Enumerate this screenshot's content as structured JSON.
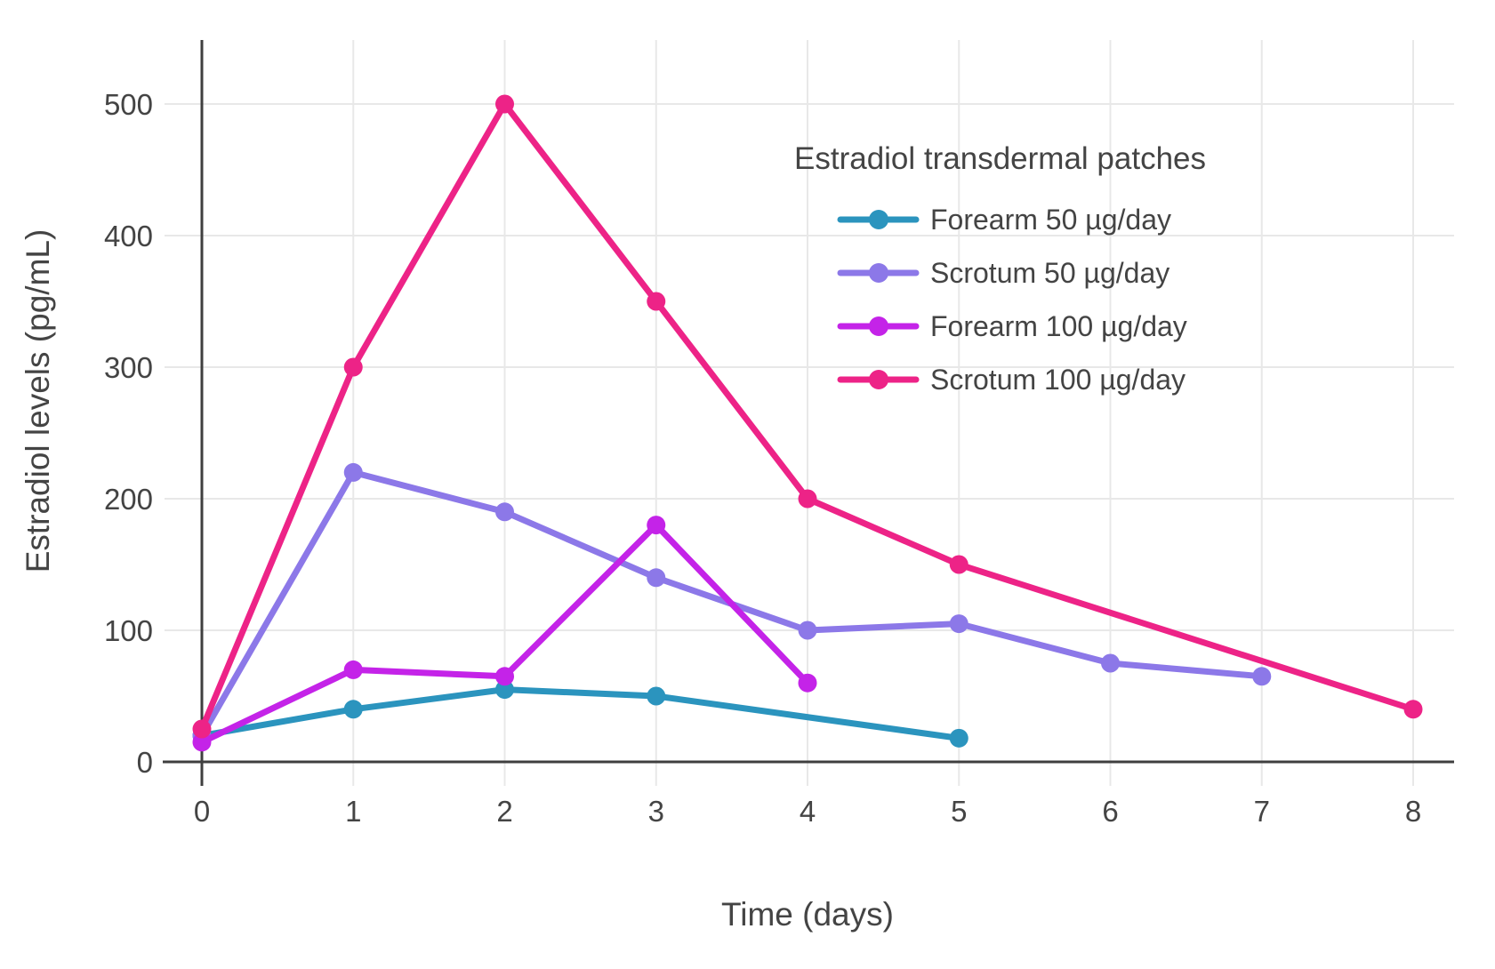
{
  "chart_data": {
    "type": "line",
    "legend_title": "Estradiol transdermal patches",
    "xlabel": "Time (days)",
    "ylabel": "Estradiol levels (pg/mL)",
    "x_ticks": [
      0,
      1,
      2,
      3,
      4,
      5,
      6,
      7,
      8
    ],
    "y_ticks": [
      0,
      100,
      200,
      300,
      400,
      500
    ],
    "xlim": [
      0,
      8.27
    ],
    "ylim": [
      0,
      549
    ],
    "grid": true,
    "legend_position": "inside-upper-right",
    "colors": {
      "axis": "#3f3f3f",
      "grid": "#e8e8e8",
      "text": "#444444",
      "background": "#ffffff"
    },
    "series": [
      {
        "name": "Forearm 50 µg/day",
        "color": "#2B94BE",
        "x": [
          0,
          1,
          2,
          3,
          5
        ],
        "y": [
          20,
          40,
          55,
          50,
          18
        ]
      },
      {
        "name": "Scrotum 50 µg/day",
        "color": "#8C78E8",
        "x": [
          0,
          1,
          2,
          3,
          4,
          5,
          6,
          7
        ],
        "y": [
          20,
          220,
          190,
          140,
          100,
          105,
          75,
          65
        ]
      },
      {
        "name": "Forearm 100 µg/day",
        "color": "#C423E8",
        "x": [
          0,
          1,
          2,
          3,
          4
        ],
        "y": [
          15,
          70,
          65,
          180,
          60
        ]
      },
      {
        "name": "Scrotum 100 µg/day",
        "color": "#ED2387",
        "x": [
          0,
          1,
          2,
          3,
          4,
          5,
          8
        ],
        "y": [
          25,
          300,
          500,
          350,
          200,
          150,
          40
        ]
      }
    ]
  }
}
